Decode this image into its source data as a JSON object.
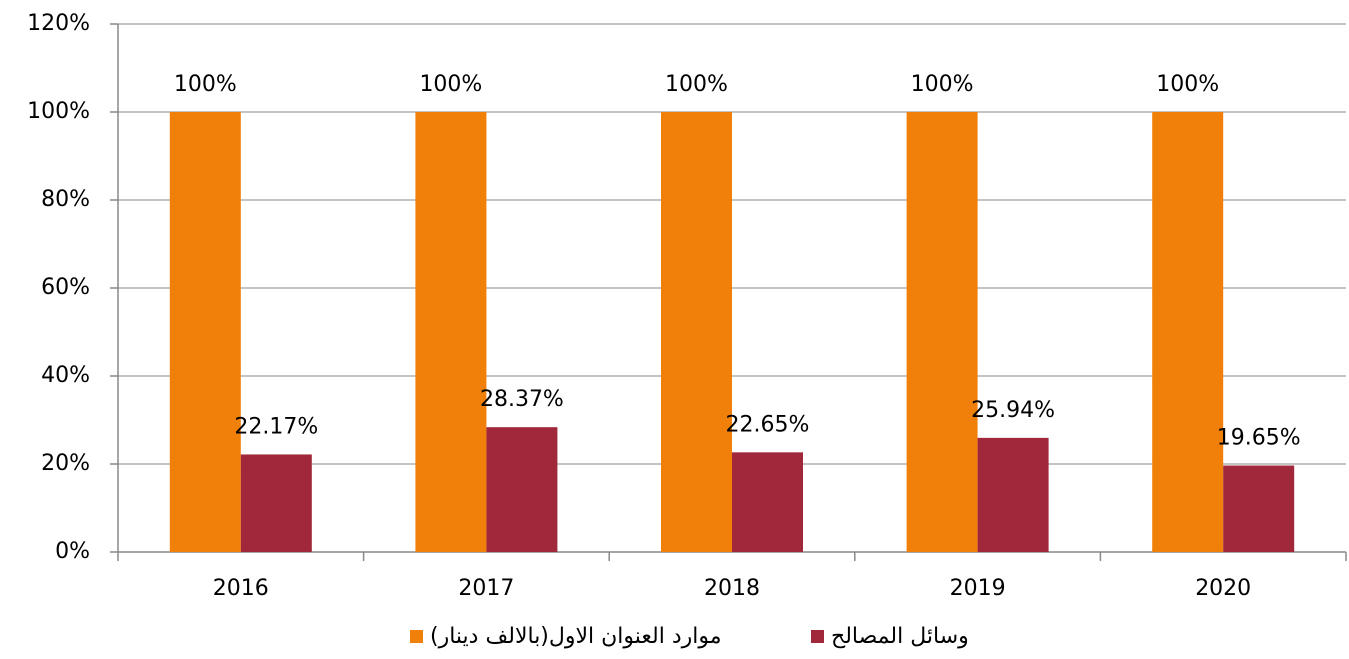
{
  "chart_data": {
    "type": "bar",
    "categories": [
      "2016",
      "2017",
      "2018",
      "2019",
      "2020"
    ],
    "series": [
      {
        "name": "موارد العنوان الاول(بالالف دينار)",
        "color": "#f0800a",
        "values": [
          100,
          100,
          100,
          100,
          100
        ],
        "value_labels": [
          "100%",
          "100%",
          "100%",
          "100%",
          "100%"
        ]
      },
      {
        "name": "وسائل المصالح",
        "color": "#a0283a",
        "values": [
          22.17,
          28.37,
          22.65,
          25.94,
          19.65
        ],
        "value_labels": [
          "22.17%",
          "28.37%",
          "22.65%",
          "25.94%",
          "19.65%"
        ]
      }
    ],
    "ylim": [
      0,
      120
    ],
    "yticks": [
      {
        "value": 0,
        "label": "0%"
      },
      {
        "value": 20,
        "label": "20%"
      },
      {
        "value": 40,
        "label": "40%"
      },
      {
        "value": 60,
        "label": "60%"
      },
      {
        "value": 80,
        "label": "80%"
      },
      {
        "value": 100,
        "label": "100%"
      },
      {
        "value": 120,
        "label": "120%"
      }
    ],
    "grid": true,
    "legend": "bottom"
  }
}
